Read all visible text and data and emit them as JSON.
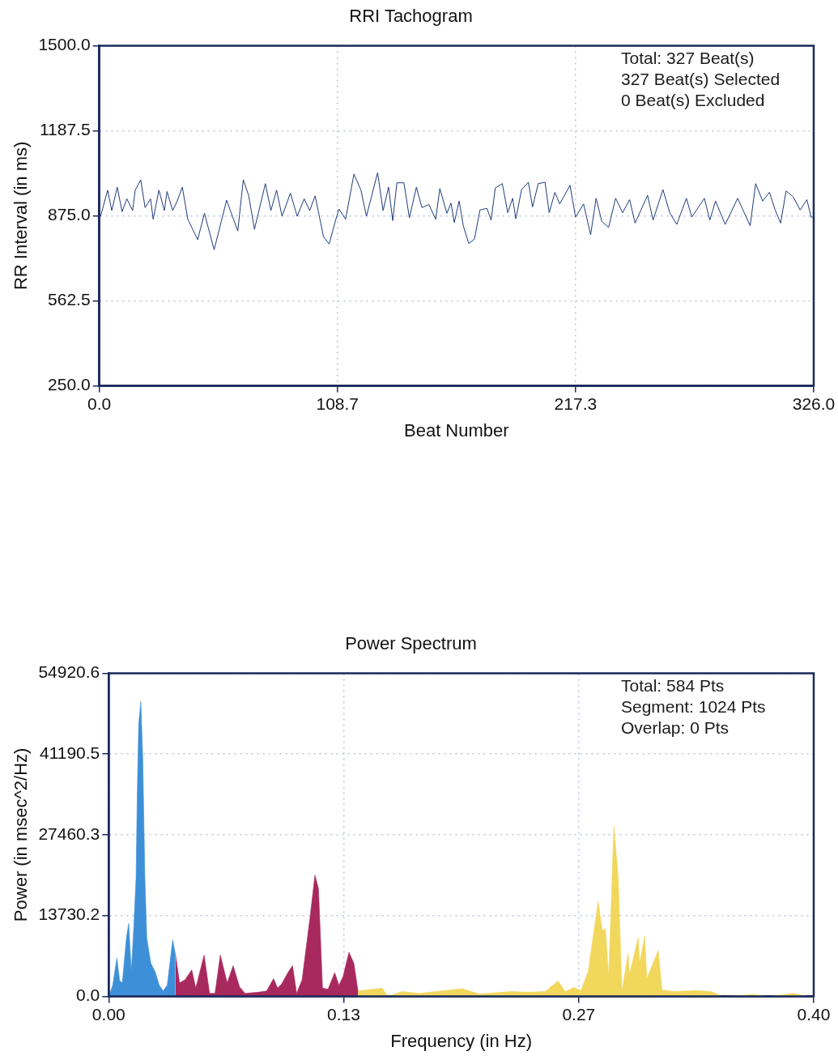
{
  "chart_data": [
    {
      "type": "line",
      "title": "RRI Tachogram",
      "xlabel": "Beat Number",
      "ylabel": "RR Interval (in ms)",
      "annotations": [
        "Total: 327 Beat(s)",
        "327 Beat(s) Selected",
        "0 Beat(s) Excluded"
      ],
      "xlim": [
        0,
        326
      ],
      "xticks": [
        {
          "value": 0,
          "label": "0.0"
        },
        {
          "value": 108.6667,
          "label": "108.7"
        },
        {
          "value": 217.3333,
          "label": "217.3"
        },
        {
          "value": 326,
          "label": "326.0"
        }
      ],
      "ylim": [
        250,
        1500
      ],
      "yticks": [
        {
          "value": 250,
          "label": "250.0"
        },
        {
          "value": 562.5,
          "label": "562.5"
        },
        {
          "value": 875,
          "label": "875.0"
        },
        {
          "value": 1187.5,
          "label": "1187.5"
        },
        {
          "value": 1500,
          "label": "1500.0"
        }
      ],
      "grid": true,
      "marker": "none",
      "series": [
        {
          "color": "#1f3a7a",
          "x": [
            0.6,
            3.8,
            5.7,
            8.2,
            10.4,
            12.6,
            15.2,
            16.4,
            18.9,
            20.9,
            23.4,
            24.6,
            27.2,
            29.7,
            30.9,
            33.5,
            35.4,
            37.9,
            40.4,
            44.9,
            48.0,
            52.4,
            58.1,
            63.2,
            65.7,
            68.2,
            70.8,
            75.8,
            78.3,
            80.9,
            83.4,
            87.2,
            90.3,
            93.5,
            96.0,
            98.5,
            102.3,
            104.9,
            106.7,
            109.3,
            112.4,
            116.2,
            119.4,
            121.9,
            127.0,
            129.5,
            132.0,
            133.9,
            135.8,
            139.0,
            141.5,
            144.7,
            147.2,
            150.4,
            153.5,
            155.4,
            158.6,
            160.5,
            162.0,
            164.2,
            166.1,
            168.6,
            171.2,
            173.7,
            176.9,
            178.8,
            180.7,
            183.9,
            186.4,
            188.6,
            190.1,
            192.7,
            195.8,
            197.7,
            200.3,
            203.4,
            205.3,
            207.9,
            210.1,
            214.8,
            217.3,
            221.0,
            224.2,
            226.7,
            229.3,
            232.4,
            235.6,
            238.8,
            242.0,
            244.5,
            250.2,
            252.7,
            257.2,
            260.3,
            263.5,
            267.9,
            270.4,
            276.1,
            278.6,
            281.2,
            285.6,
            291.3,
            297.0,
            299.5,
            302.7,
            305.8,
            308.4,
            310.9,
            313.4,
            316.6,
            319.8,
            322.9,
            324.8,
            326
          ],
          "values": [
            873,
            969,
            894,
            980,
            890,
            937,
            894,
            969,
            1007,
            905,
            937,
            862,
            969,
            894,
            964,
            894,
            926,
            980,
            862,
            787,
            884,
            750,
            932,
            819,
            1007,
            948,
            825,
            993,
            894,
            969,
            873,
            958,
            873,
            937,
            894,
            948,
            798,
            771,
            825,
            900,
            862,
            1028,
            969,
            873,
            1033,
            894,
            980,
            857,
            996,
            996,
            867,
            980,
            905,
            916,
            862,
            975,
            884,
            921,
            850,
            929,
            838,
            773,
            789,
            896,
            902,
            859,
            977,
            993,
            886,
            939,
            864,
            971,
            998,
            907,
            993,
            998,
            886,
            961,
            918,
            987,
            870,
            918,
            805,
            939,
            854,
            832,
            939,
            886,
            934,
            848,
            950,
            859,
            971,
            886,
            843,
            939,
            870,
            939,
            859,
            929,
            843,
            939,
            838,
            993,
            929,
            961,
            896,
            848,
            966,
            945,
            896,
            934,
            870,
            870
          ]
        }
      ]
    },
    {
      "type": "area",
      "title": "Power Spectrum",
      "xlabel": "Frequency (in Hz)",
      "ylabel": "Power (in msec^2/Hz)",
      "annotations": [
        "Total: 584 Pts",
        "Segment: 1024 Pts",
        "Overlap: 0 Pts"
      ],
      "xlim": [
        0,
        0.4
      ],
      "xticks": [
        {
          "value": 0,
          "label": "0.00"
        },
        {
          "value": 0.1333,
          "label": "0.13"
        },
        {
          "value": 0.2667,
          "label": "0.27"
        },
        {
          "value": 0.4,
          "label": "0.40"
        }
      ],
      "ylim": [
        0,
        54920.6
      ],
      "yticks": [
        {
          "value": 0,
          "label": "0.0"
        },
        {
          "value": 13730.15,
          "label": "13730.2"
        },
        {
          "value": 27460.3,
          "label": "27460.3"
        },
        {
          "value": 41190.45,
          "label": "41190.5"
        },
        {
          "value": 54920.6,
          "label": "54920.6"
        }
      ],
      "grid": true,
      "marker": "none",
      "series": [
        {
          "color": "#3d8fd8",
          "x": [
            0,
            0.0023,
            0.0046,
            0.0062,
            0.0077,
            0.01,
            0.0113,
            0.0128,
            0.0142,
            0.0155,
            0.0162,
            0.017,
            0.0182,
            0.0193,
            0.0205,
            0.0216,
            0.0239,
            0.0263,
            0.0286,
            0.0309,
            0.0332,
            0.0363,
            0.0379
          ],
          "values": [
            0,
            1900,
            6500,
            2600,
            2300,
            9800,
            12400,
            4200,
            11700,
            20100,
            34600,
            46300,
            50100,
            40300,
            20100,
            9800,
            5600,
            4200,
            1900,
            900,
            1900,
            9600,
            7000
          ]
        },
        {
          "color": "#a8295e",
          "x": [
            0.0379,
            0.0402,
            0.0433,
            0.0471,
            0.0494,
            0.0541,
            0.0572,
            0.0603,
            0.0633,
            0.0672,
            0.0706,
            0.0742,
            0.0773,
            0.085,
            0.0896,
            0.0935,
            0.0958,
            0.0981,
            0.102,
            0.1043,
            0.1066,
            0.1097,
            0.1143,
            0.117,
            0.119,
            0.1213,
            0.1244,
            0.1282,
            0.1306,
            0.1329,
            0.1363,
            0.1391,
            0.1414
          ],
          "values": [
            7000,
            2300,
            2800,
            4500,
            1400,
            7000,
            500,
            500,
            7000,
            2300,
            5200,
            1600,
            500,
            700,
            900,
            3000,
            1400,
            2100,
            4200,
            5200,
            500,
            2800,
            13600,
            20600,
            18300,
            1400,
            1200,
            4000,
            1900,
            3300,
            7500,
            5600,
            900
          ]
        },
        {
          "color": "#f1d75c",
          "x": [
            0.1414,
            0.1551,
            0.1583,
            0.1664,
            0.1761,
            0.2005,
            0.2103,
            0.2281,
            0.2379,
            0.2477,
            0.2549,
            0.259,
            0.2639,
            0.268,
            0.272,
            0.2777,
            0.2801,
            0.2818,
            0.2837,
            0.2866,
            0.2891,
            0.2912,
            0.2947,
            0.2955,
            0.3004,
            0.3012,
            0.3041,
            0.3053,
            0.3118,
            0.3139,
            0.3207,
            0.3329,
            0.3418,
            0.3483,
            0.3662,
            0.3743,
            0.3889,
            0.3962,
            0.4
          ],
          "values": [
            900,
            1400,
            0,
            800,
            500,
            1300,
            400,
            800,
            700,
            800,
            2600,
            800,
            1500,
            1000,
            4200,
            16100,
            11100,
            11500,
            3400,
            28900,
            20100,
            800,
            7300,
            3700,
            10000,
            5600,
            10200,
            3000,
            7800,
            1100,
            800,
            1000,
            800,
            0,
            300,
            0,
            500,
            0,
            0
          ]
        }
      ]
    }
  ]
}
